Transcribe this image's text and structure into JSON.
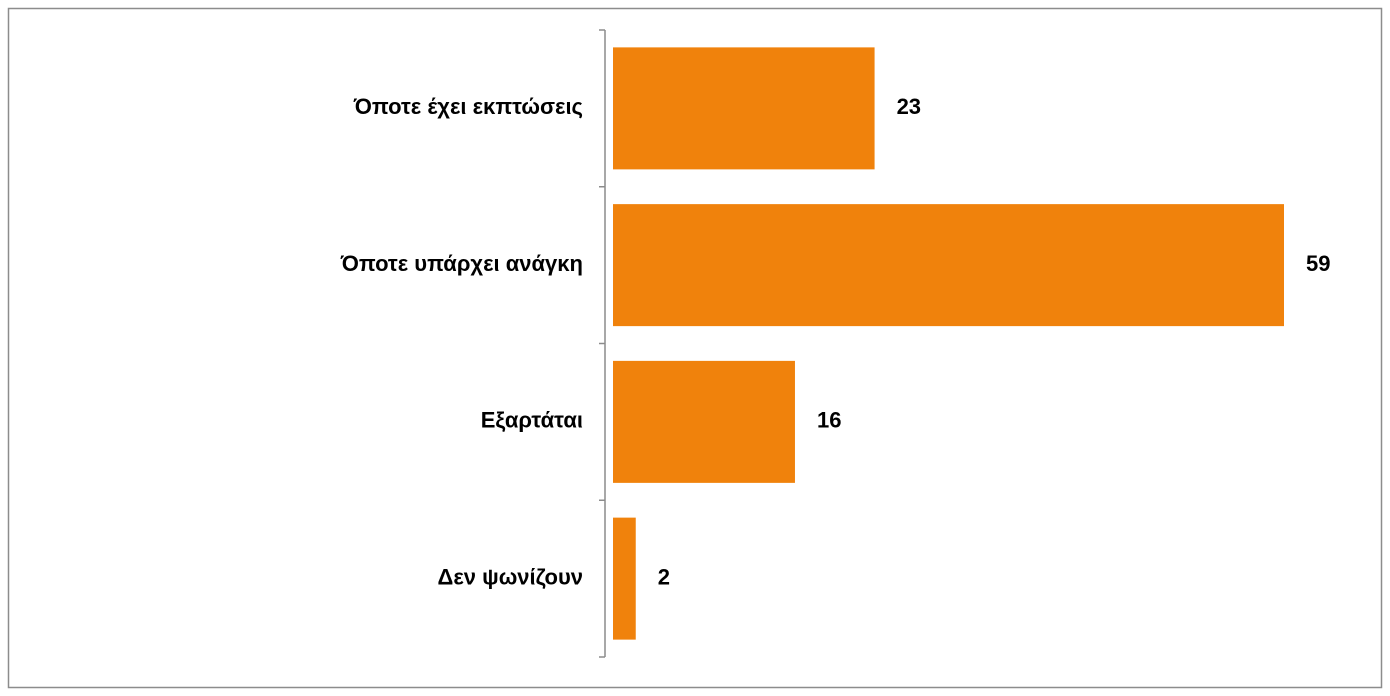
{
  "chart_data": {
    "type": "bar",
    "orientation": "horizontal",
    "categories": [
      "Όποτε έχει εκπτώσεις",
      "Όποτε υπάρχει ανάγκη",
      "Εξαρτάται",
      "Δεν ψωνίζουν"
    ],
    "values": [
      23,
      59,
      16,
      2
    ],
    "color": "#f0820c"
  }
}
